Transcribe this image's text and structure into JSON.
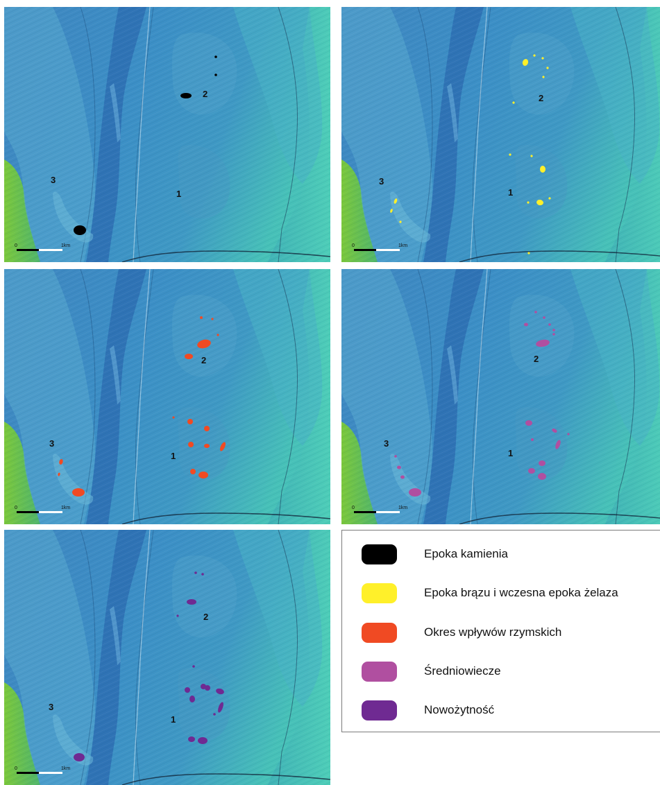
{
  "scale": {
    "zero": "0",
    "distance": "1km"
  },
  "area_labels": {
    "a1": "1",
    "a2": "2",
    "a3": "3"
  },
  "colors": {
    "stone": "#000000",
    "bronze": "#fff02a",
    "roman": "#f04a23",
    "medieval": "#b04fa0",
    "modern": "#6f2a92"
  },
  "legend": {
    "items": [
      {
        "label": "Epoka kamienia",
        "color": "#000000"
      },
      {
        "label": "Epoka brązu i wczesna epoka żelaza",
        "color": "#fff02a"
      },
      {
        "label": "Okres wpływów rzymskich",
        "color": "#f04a23"
      },
      {
        "label": "Średniowiecze",
        "color": "#b04fa0"
      },
      {
        "label": "Nowożytność",
        "color": "#6f2a92"
      }
    ]
  },
  "map_panels": [
    {
      "period": "Epoka kamienia",
      "color_key": "stone"
    },
    {
      "period": "Epoka brązu i wczesna epoka żelaza",
      "color_key": "bronze"
    },
    {
      "period": "Okres wpływów rzymskich",
      "color_key": "roman"
    },
    {
      "period": "Średniowiecze",
      "color_key": "medieval"
    },
    {
      "period": "Nowożytność",
      "color_key": "modern"
    }
  ]
}
